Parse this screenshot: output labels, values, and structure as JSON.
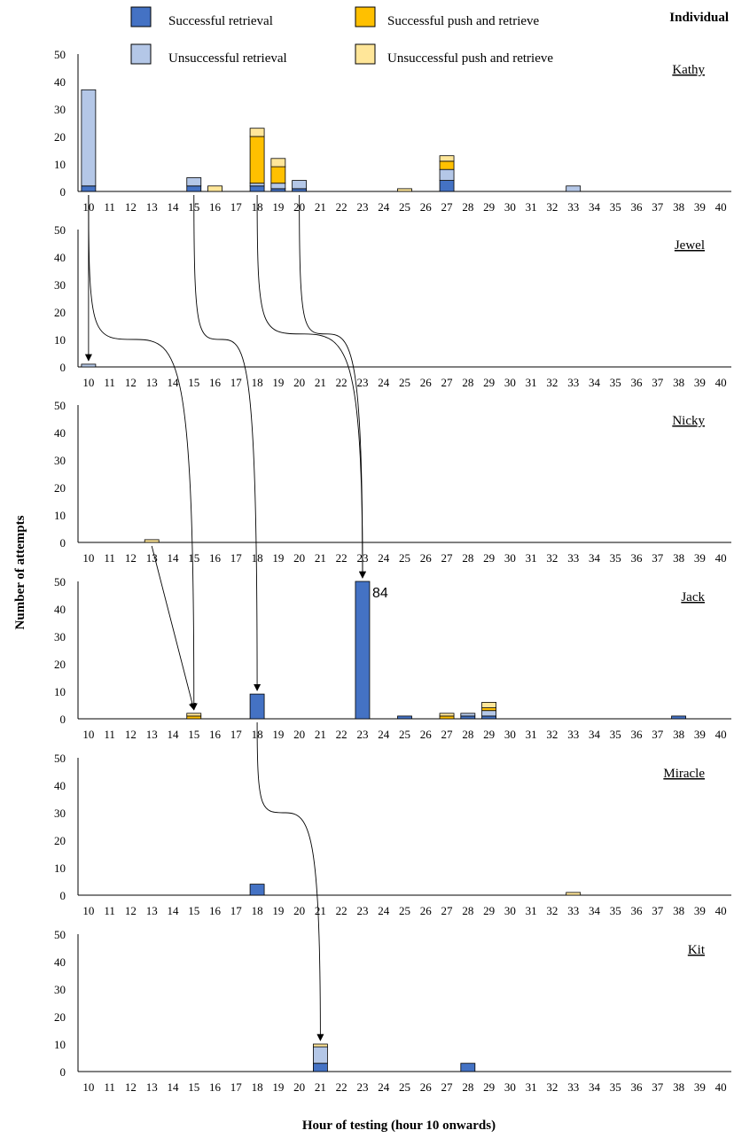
{
  "chart_data": {
    "type": "bar",
    "stacked": true,
    "header": "Individual",
    "xlabel": "Hour of testing (hour 10 onwards)",
    "ylabel": "Number of attempts",
    "ylim": [
      0,
      50
    ],
    "yticks": [
      0,
      10,
      20,
      30,
      40,
      50
    ],
    "categories": [
      10,
      11,
      12,
      13,
      14,
      15,
      16,
      17,
      18,
      19,
      20,
      21,
      22,
      23,
      24,
      25,
      26,
      27,
      28,
      29,
      30,
      31,
      32,
      33,
      34,
      35,
      36,
      37,
      38,
      39,
      40
    ],
    "legend_position": "top",
    "series_keys": [
      "sr",
      "ur",
      "sp",
      "up"
    ],
    "legend": [
      {
        "key": "sr",
        "label": "Successful retrieval",
        "color": "#4472C4"
      },
      {
        "key": "ur",
        "label": "Unsuccessful retrieval",
        "color": "#B4C7E7"
      },
      {
        "key": "sp",
        "label": "Successful push and retrieve",
        "color": "#FFC000"
      },
      {
        "key": "up",
        "label": "Unsuccessful push and retrieve",
        "color": "#FFE699"
      }
    ],
    "panels": [
      {
        "name": "Kathy",
        "bars": [
          {
            "hour": 10,
            "sr": 2,
            "ur": 35,
            "sp": 0,
            "up": 0
          },
          {
            "hour": 15,
            "sr": 2,
            "ur": 3,
            "sp": 0,
            "up": 0
          },
          {
            "hour": 16,
            "sr": 0,
            "ur": 0,
            "sp": 0,
            "up": 2
          },
          {
            "hour": 18,
            "sr": 2,
            "ur": 1,
            "sp": 17,
            "up": 3
          },
          {
            "hour": 19,
            "sr": 1,
            "ur": 2,
            "sp": 6,
            "up": 3
          },
          {
            "hour": 20,
            "sr": 1,
            "ur": 3,
            "sp": 0,
            "up": 0
          },
          {
            "hour": 25,
            "sr": 0,
            "ur": 0,
            "sp": 0,
            "up": 1
          },
          {
            "hour": 27,
            "sr": 4,
            "ur": 4,
            "sp": 3,
            "up": 2
          },
          {
            "hour": 33,
            "sr": 0,
            "ur": 2,
            "sp": 0,
            "up": 0
          }
        ]
      },
      {
        "name": "Jewel",
        "bars": [
          {
            "hour": 10,
            "sr": 0,
            "ur": 1,
            "sp": 0,
            "up": 0
          }
        ]
      },
      {
        "name": "Nicky",
        "bars": [
          {
            "hour": 13,
            "sr": 0,
            "ur": 0,
            "sp": 0,
            "up": 1
          }
        ]
      },
      {
        "name": "Jack",
        "bars": [
          {
            "hour": 15,
            "sr": 0,
            "ur": 0,
            "sp": 1,
            "up": 1
          },
          {
            "hour": 18,
            "sr": 9,
            "ur": 0,
            "sp": 0,
            "up": 0
          },
          {
            "hour": 23,
            "sr": 84,
            "ur": 0,
            "sp": 0,
            "up": 0,
            "label": "84"
          },
          {
            "hour": 25,
            "sr": 1,
            "ur": 0,
            "sp": 0,
            "up": 0
          },
          {
            "hour": 27,
            "sr": 0,
            "ur": 0,
            "sp": 1,
            "up": 1
          },
          {
            "hour": 28,
            "sr": 1,
            "ur": 1,
            "sp": 0,
            "up": 0
          },
          {
            "hour": 29,
            "sr": 1,
            "ur": 2,
            "sp": 1,
            "up": 2
          },
          {
            "hour": 38,
            "sr": 1,
            "ur": 0,
            "sp": 0,
            "up": 0
          }
        ]
      },
      {
        "name": "Miracle",
        "bars": [
          {
            "hour": 18,
            "sr": 4,
            "ur": 0,
            "sp": 0,
            "up": 0
          },
          {
            "hour": 33,
            "sr": 0,
            "ur": 0,
            "sp": 0,
            "up": 1
          }
        ]
      },
      {
        "name": "Kit",
        "bars": [
          {
            "hour": 21,
            "sr": 3,
            "ur": 6,
            "sp": 0,
            "up": 1
          },
          {
            "hour": 28,
            "sr": 3,
            "ur": 0,
            "sp": 0,
            "up": 0
          }
        ]
      }
    ],
    "arrows": [
      {
        "from_panel": 0,
        "from_hour": 10,
        "to_panel": 1,
        "to_hour": 10,
        "curve_y": 13
      },
      {
        "from_panel": 0,
        "from_hour": 10,
        "to_panel": 3,
        "to_hour": 15,
        "curve_y": 10
      },
      {
        "from_panel": 0,
        "from_hour": 15,
        "to_panel": 3,
        "to_hour": 18,
        "curve_y": 10
      },
      {
        "from_panel": 0,
        "from_hour": 18,
        "to_panel": 3,
        "to_hour": 23,
        "curve_y": 12
      },
      {
        "from_panel": 0,
        "from_hour": 20,
        "to_panel": 3,
        "to_hour": 23,
        "curve_y": 12
      },
      {
        "from_panel": 2,
        "from_hour": 13,
        "to_panel": 3,
        "to_hour": 15,
        "curve_y": null
      },
      {
        "from_panel": 3,
        "from_hour": 18,
        "to_panel": 5,
        "to_hour": 21,
        "curve_y": 30
      }
    ]
  }
}
